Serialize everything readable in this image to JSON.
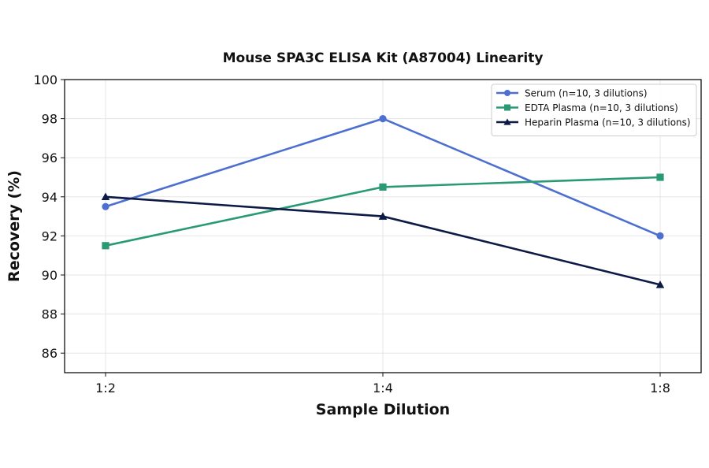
{
  "chart_data": {
    "type": "line",
    "title": "Mouse SPA3C ELISA Kit (A87004) Linearity",
    "xlabel": "Sample Dilution",
    "ylabel": "Recovery (%)",
    "categories": [
      "1:2",
      "1:4",
      "1:8"
    ],
    "ylim": [
      85,
      100
    ],
    "yticks": [
      86,
      88,
      90,
      92,
      94,
      96,
      98,
      100
    ],
    "grid": true,
    "legend_position": "top-right",
    "series": [
      {
        "name": "Serum (n=10, 3 dilutions)",
        "values": [
          93.5,
          98.0,
          92.0
        ],
        "color": "#4c6fd0",
        "marker": "circle"
      },
      {
        "name": "EDTA Plasma (n=10, 3 dilutions)",
        "values": [
          91.5,
          94.5,
          95.0
        ],
        "color": "#2a9a76",
        "marker": "square"
      },
      {
        "name": "Heparin Plasma (n=10, 3 dilutions)",
        "values": [
          94.0,
          93.0,
          89.5
        ],
        "color": "#0d1a45",
        "marker": "triangle"
      }
    ]
  }
}
